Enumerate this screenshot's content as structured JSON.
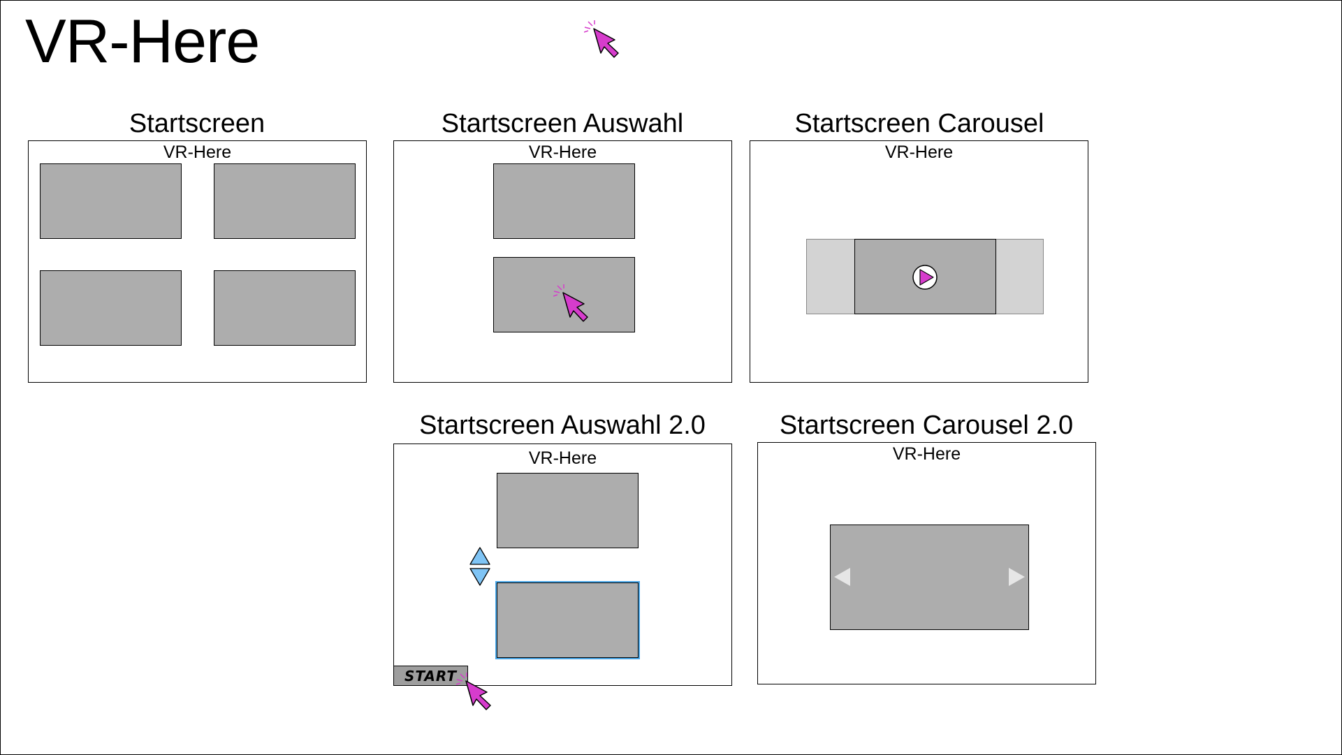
{
  "title": "VR-Here",
  "colors": {
    "tile_fill": "#adadad",
    "tile_side_fill": "#d3d3d3",
    "cursor_fill": "#d63ccc",
    "arrow_fill": "#7fc4f5",
    "selection_outline": "#4aa7e8"
  },
  "panels": [
    {
      "title": "Startscreen",
      "header": "VR-Here"
    },
    {
      "title": "Startscreen Auswahl",
      "header": "VR-Here"
    },
    {
      "title": "Startscreen Carousel",
      "header": "VR-Here"
    },
    {
      "title": "Startscreen Auswahl 2.0",
      "header": "VR-Here",
      "start_label": "START"
    },
    {
      "title": "Startscreen Carousel 2.0",
      "header": "VR-Here"
    }
  ]
}
